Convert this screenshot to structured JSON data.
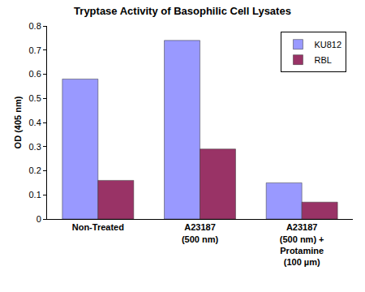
{
  "chart_data": {
    "type": "bar",
    "title": "Tryptase Activity of Basophilic Cell Lysates",
    "y_label": "OD (405 nm)",
    "categories": [
      "Non-Treated",
      "A23187\n(500 nm)",
      "A23187\n(500 nm) +\nProtamine\n(100 µm)"
    ],
    "series": [
      {
        "name": "KU812",
        "color": "#9999ff",
        "values": [
          0.58,
          0.74,
          0.15
        ]
      },
      {
        "name": "RBL",
        "color": "#993366",
        "values": [
          0.16,
          0.29,
          0.07
        ]
      }
    ],
    "ylim": [
      0,
      0.8
    ],
    "yticks": [
      0,
      0.1,
      0.2,
      0.3,
      0.4,
      0.5,
      0.6,
      0.7,
      0.8
    ],
    "grid": false,
    "legend": "top right"
  }
}
